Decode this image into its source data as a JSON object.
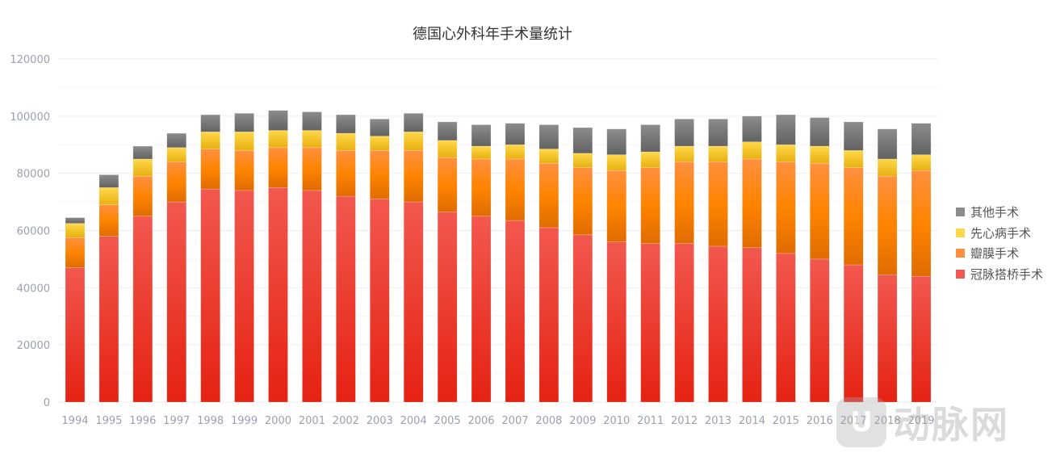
{
  "chart_data": {
    "type": "bar",
    "stacked": true,
    "title": "德国心外科年手术量统计",
    "xlabel": "",
    "ylabel": "",
    "ylim": [
      0,
      120000
    ],
    "yticks": [
      0,
      20000,
      40000,
      60000,
      80000,
      100000,
      120000
    ],
    "grid": true,
    "legend_position": "right",
    "categories": [
      "1994",
      "1995",
      "1996",
      "1997",
      "1998",
      "1999",
      "2000",
      "2001",
      "2002",
      "2003",
      "2004",
      "2005",
      "2006",
      "2007",
      "2008",
      "2009",
      "2010",
      "2011",
      "2012",
      "2013",
      "2014",
      "2015",
      "2016",
      "2017",
      "2018",
      "2019"
    ],
    "series": [
      {
        "name": "冠脉搭桥手术",
        "color": "#f5321e",
        "values": [
          47000,
          58000,
          65000,
          70000,
          74500,
          74000,
          75000,
          74000,
          72000,
          71000,
          70000,
          66500,
          65000,
          63500,
          61000,
          58500,
          56000,
          55500,
          55500,
          54500,
          54000,
          52000,
          50000,
          48000,
          44500,
          44000
        ]
      },
      {
        "name": "瓣膜手术",
        "color": "#ff8400",
        "values": [
          10500,
          11000,
          14000,
          14000,
          14000,
          14000,
          14000,
          15000,
          16000,
          17000,
          18000,
          19000,
          20000,
          21500,
          22500,
          23500,
          25000,
          26500,
          28500,
          29500,
          31000,
          32000,
          33500,
          34000,
          34500,
          37000
        ]
      },
      {
        "name": "先心病手术",
        "color": "#ffc82a",
        "values": [
          5000,
          6000,
          6000,
          5000,
          6000,
          6500,
          6000,
          6000,
          6000,
          5000,
          6500,
          6000,
          4500,
          5000,
          5000,
          5000,
          5500,
          5500,
          5500,
          5500,
          6000,
          6000,
          6000,
          6000,
          6000,
          5500
        ]
      },
      {
        "name": "其他手术",
        "color": "#777777",
        "values": [
          2000,
          4500,
          4500,
          5000,
          6000,
          6500,
          7000,
          6500,
          6500,
          6000,
          6500,
          6500,
          7500,
          7500,
          8500,
          9000,
          9000,
          9500,
          9500,
          9500,
          9000,
          10500,
          10000,
          10000,
          10500,
          11000
        ]
      }
    ]
  },
  "watermark": {
    "text": "动脉网"
  }
}
